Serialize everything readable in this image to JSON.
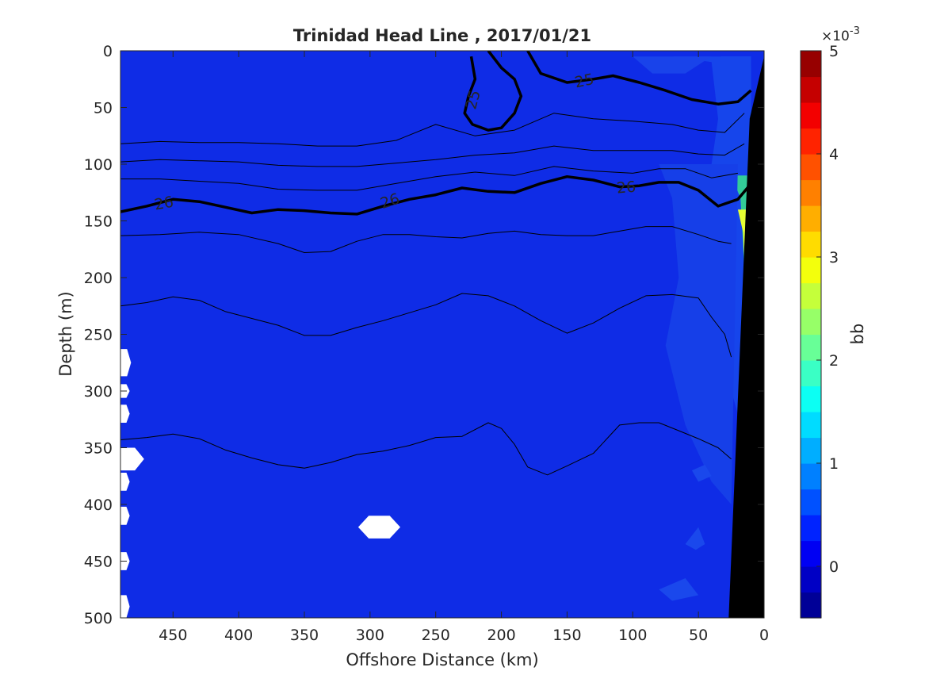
{
  "chart_data": {
    "type": "heatmap",
    "title": "Trinidad Head Line , 2017/01/21",
    "xlabel": "Offshore Distance (km)",
    "ylabel": "Depth (m)",
    "xlim": [
      490,
      0
    ],
    "ylim": [
      0,
      500
    ],
    "x_reversed": true,
    "y_reversed": true,
    "x_ticks": [
      450,
      400,
      350,
      300,
      250,
      200,
      150,
      100,
      50,
      0
    ],
    "y_ticks": [
      0,
      50,
      100,
      150,
      200,
      250,
      300,
      350,
      400,
      450,
      500
    ],
    "grid": false,
    "colorbar": {
      "label": "bb",
      "exponent_label": "×10",
      "exponent_power": "-3",
      "range": [
        -0.5,
        5
      ],
      "ticks": [
        0,
        1,
        2,
        3,
        4,
        5
      ],
      "levels": 22,
      "colormap": "jet"
    },
    "background_value": 0.3,
    "background_color": "#0f2ce6",
    "bathymetry_polygon": [
      [
        27,
        500
      ],
      [
        11,
        60
      ],
      [
        0,
        5
      ],
      [
        0,
        500
      ]
    ],
    "no_data_patches": [
      {
        "center": [
          293,
          420
        ],
        "dx": 16,
        "dy": 10
      },
      {
        "center": [
          488,
          275
        ],
        "dx": 6,
        "dy": 12
      },
      {
        "center": [
          488,
          300
        ],
        "dx": 5,
        "dy": 6
      },
      {
        "center": [
          488,
          320
        ],
        "dx": 5,
        "dy": 8
      },
      {
        "center": [
          486,
          360
        ],
        "dx": 14,
        "dy": 10
      },
      {
        "center": [
          488,
          380
        ],
        "dx": 5,
        "dy": 8
      },
      {
        "center": [
          488,
          410
        ],
        "dx": 5,
        "dy": 8
      },
      {
        "center": [
          488,
          450
        ],
        "dx": 5,
        "dy": 8
      },
      {
        "center": [
          488,
          490
        ],
        "dx": 5,
        "dy": 10
      }
    ],
    "nearshore_features": [
      {
        "points": [
          [
            33,
            5
          ],
          [
            25,
            20
          ],
          [
            17,
            60
          ],
          [
            20,
            120
          ],
          [
            18,
            180
          ],
          [
            10,
            220
          ],
          [
            10,
            5
          ]
        ],
        "value": 0.9,
        "color": "#1a5cf2"
      },
      {
        "points": [
          [
            70,
            5
          ],
          [
            40,
            10
          ],
          [
            35,
            60
          ],
          [
            40,
            100
          ],
          [
            30,
            160
          ],
          [
            25,
            220
          ],
          [
            30,
            280
          ],
          [
            20,
            320
          ],
          [
            12,
            300
          ],
          [
            10,
            5
          ]
        ],
        "value": 0.6,
        "color": "#1645eb"
      },
      {
        "points": [
          [
            25,
            110
          ],
          [
            18,
            130
          ],
          [
            16,
            170
          ],
          [
            15,
            200
          ],
          [
            13,
            200
          ],
          [
            13,
            110
          ]
        ],
        "value": 2.2,
        "color": "#33cc99"
      },
      {
        "points": [
          [
            20,
            140
          ],
          [
            16,
            160
          ],
          [
            15,
            190
          ],
          [
            13,
            190
          ],
          [
            13,
            140
          ]
        ],
        "value": 3.0,
        "color": "#e6ff33"
      },
      {
        "points": [
          [
            80,
            100
          ],
          [
            70,
            130
          ],
          [
            65,
            200
          ],
          [
            75,
            260
          ],
          [
            60,
            330
          ],
          [
            40,
            380
          ],
          [
            25,
            400
          ],
          [
            20,
            100
          ]
        ],
        "value": 0.5,
        "color": "#163fe8"
      },
      {
        "points": [
          [
            120,
            5
          ],
          [
            100,
            5
          ],
          [
            85,
            20
          ],
          [
            60,
            20
          ],
          [
            40,
            5
          ]
        ],
        "value": 0.5,
        "color": "#1943ea"
      },
      {
        "points": [
          [
            60,
            435
          ],
          [
            50,
            420
          ],
          [
            45,
            435
          ],
          [
            52,
            440
          ]
        ],
        "value": 0.5,
        "color": "#1a48ec"
      },
      {
        "points": [
          [
            80,
            475
          ],
          [
            60,
            465
          ],
          [
            50,
            480
          ],
          [
            70,
            485
          ]
        ],
        "value": 0.5,
        "color": "#1a48ec"
      },
      {
        "points": [
          [
            55,
            370
          ],
          [
            45,
            365
          ],
          [
            40,
            375
          ],
          [
            50,
            380
          ]
        ],
        "value": 0.5,
        "color": "#1a48ec"
      }
    ],
    "contours": [
      {
        "level": 25,
        "bold": true,
        "points": [
          [
            223,
            5
          ],
          [
            220,
            25
          ],
          [
            225,
            40
          ],
          [
            228,
            55
          ],
          [
            222,
            65
          ],
          [
            210,
            70
          ],
          [
            200,
            68
          ],
          [
            190,
            55
          ],
          [
            185,
            40
          ],
          [
            190,
            25
          ],
          [
            200,
            15
          ],
          [
            210,
            0
          ]
        ]
      },
      {
        "level": 25,
        "bold": true,
        "points": [
          [
            180,
            0
          ],
          [
            170,
            20
          ],
          [
            150,
            28
          ],
          [
            130,
            25
          ],
          [
            115,
            22
          ],
          [
            95,
            28
          ],
          [
            75,
            35
          ],
          [
            55,
            43
          ],
          [
            35,
            47
          ],
          [
            20,
            45
          ],
          [
            10,
            35
          ]
        ]
      },
      {
        "level": 26,
        "bold": true,
        "points": [
          [
            490,
            142
          ],
          [
            470,
            137
          ],
          [
            450,
            131
          ],
          [
            430,
            133
          ],
          [
            410,
            138
          ],
          [
            390,
            143
          ],
          [
            370,
            140
          ],
          [
            350,
            141
          ],
          [
            330,
            143
          ],
          [
            310,
            144
          ],
          [
            290,
            137
          ],
          [
            270,
            131
          ],
          [
            250,
            127
          ],
          [
            230,
            121
          ],
          [
            210,
            124
          ],
          [
            190,
            125
          ],
          [
            170,
            117
          ],
          [
            150,
            111
          ],
          [
            130,
            114
          ],
          [
            110,
            120
          ],
          [
            95,
            119
          ],
          [
            80,
            116
          ],
          [
            65,
            116
          ],
          [
            50,
            123
          ],
          [
            35,
            137
          ],
          [
            20,
            131
          ],
          [
            12,
            120
          ]
        ]
      },
      {
        "level": null,
        "bold": false,
        "points": [
          [
            490,
            82
          ],
          [
            460,
            80
          ],
          [
            430,
            81
          ],
          [
            400,
            81
          ],
          [
            370,
            82
          ],
          [
            340,
            84
          ],
          [
            310,
            84
          ],
          [
            280,
            79
          ],
          [
            250,
            65
          ],
          [
            220,
            75
          ],
          [
            190,
            70
          ],
          [
            160,
            55
          ],
          [
            130,
            60
          ],
          [
            100,
            62
          ],
          [
            70,
            65
          ],
          [
            50,
            70
          ],
          [
            30,
            72
          ],
          [
            15,
            55
          ]
        ]
      },
      {
        "level": null,
        "bold": false,
        "points": [
          [
            490,
            98
          ],
          [
            460,
            96
          ],
          [
            430,
            97
          ],
          [
            400,
            98
          ],
          [
            370,
            101
          ],
          [
            340,
            102
          ],
          [
            310,
            102
          ],
          [
            280,
            99
          ],
          [
            250,
            96
          ],
          [
            220,
            92
          ],
          [
            190,
            90
          ],
          [
            160,
            84
          ],
          [
            130,
            88
          ],
          [
            100,
            88
          ],
          [
            70,
            88
          ],
          [
            50,
            91
          ],
          [
            30,
            92
          ],
          [
            15,
            82
          ]
        ]
      },
      {
        "level": null,
        "bold": false,
        "points": [
          [
            490,
            113
          ],
          [
            460,
            113
          ],
          [
            430,
            115
          ],
          [
            400,
            117
          ],
          [
            370,
            122
          ],
          [
            340,
            123
          ],
          [
            310,
            123
          ],
          [
            280,
            117
          ],
          [
            250,
            111
          ],
          [
            220,
            107
          ],
          [
            190,
            110
          ],
          [
            160,
            102
          ],
          [
            130,
            106
          ],
          [
            100,
            108
          ],
          [
            80,
            104
          ],
          [
            60,
            104
          ],
          [
            40,
            112
          ],
          [
            20,
            108
          ]
        ]
      },
      {
        "level": null,
        "bold": false,
        "points": [
          [
            490,
            163
          ],
          [
            460,
            162
          ],
          [
            430,
            160
          ],
          [
            400,
            162
          ],
          [
            370,
            170
          ],
          [
            350,
            178
          ],
          [
            330,
            177
          ],
          [
            310,
            168
          ],
          [
            290,
            162
          ],
          [
            270,
            162
          ],
          [
            250,
            164
          ],
          [
            230,
            165
          ],
          [
            210,
            161
          ],
          [
            190,
            159
          ],
          [
            170,
            162
          ],
          [
            150,
            163
          ],
          [
            130,
            163
          ],
          [
            110,
            159
          ],
          [
            90,
            155
          ],
          [
            70,
            155
          ],
          [
            50,
            162
          ],
          [
            35,
            168
          ],
          [
            25,
            170
          ]
        ]
      },
      {
        "level": null,
        "bold": false,
        "points": [
          [
            490,
            225
          ],
          [
            470,
            222
          ],
          [
            450,
            217
          ],
          [
            430,
            220
          ],
          [
            410,
            230
          ],
          [
            390,
            236
          ],
          [
            370,
            242
          ],
          [
            350,
            251
          ],
          [
            330,
            251
          ],
          [
            310,
            244
          ],
          [
            290,
            238
          ],
          [
            270,
            231
          ],
          [
            250,
            224
          ],
          [
            230,
            214
          ],
          [
            210,
            216
          ],
          [
            190,
            225
          ],
          [
            170,
            238
          ],
          [
            150,
            249
          ],
          [
            130,
            240
          ],
          [
            110,
            227
          ],
          [
            90,
            216
          ],
          [
            70,
            215
          ],
          [
            50,
            218
          ],
          [
            40,
            235
          ],
          [
            30,
            250
          ],
          [
            25,
            270
          ]
        ]
      },
      {
        "level": null,
        "bold": false,
        "points": [
          [
            490,
            343
          ],
          [
            470,
            341
          ],
          [
            450,
            338
          ],
          [
            430,
            342
          ],
          [
            410,
            352
          ],
          [
            390,
            359
          ],
          [
            370,
            365
          ],
          [
            350,
            368
          ],
          [
            330,
            363
          ],
          [
            310,
            356
          ],
          [
            290,
            353
          ],
          [
            270,
            348
          ],
          [
            250,
            341
          ],
          [
            230,
            340
          ],
          [
            210,
            328
          ],
          [
            200,
            333
          ],
          [
            190,
            347
          ],
          [
            180,
            367
          ],
          [
            165,
            374
          ],
          [
            150,
            366
          ],
          [
            130,
            355
          ],
          [
            110,
            330
          ],
          [
            95,
            328
          ],
          [
            80,
            328
          ],
          [
            65,
            335
          ],
          [
            50,
            342
          ],
          [
            35,
            350
          ],
          [
            25,
            360
          ]
        ]
      }
    ],
    "contour_labels": [
      {
        "text": "25",
        "x": 222,
        "y": 43,
        "angle": -75
      },
      {
        "text": "25",
        "x": 137,
        "y": 26,
        "angle": -12
      },
      {
        "text": "26",
        "x": 457,
        "y": 134,
        "angle": -10
      },
      {
        "text": "26",
        "x": 285,
        "y": 132,
        "angle": -18
      },
      {
        "text": "26",
        "x": 105,
        "y": 120,
        "angle": -5
      }
    ]
  }
}
